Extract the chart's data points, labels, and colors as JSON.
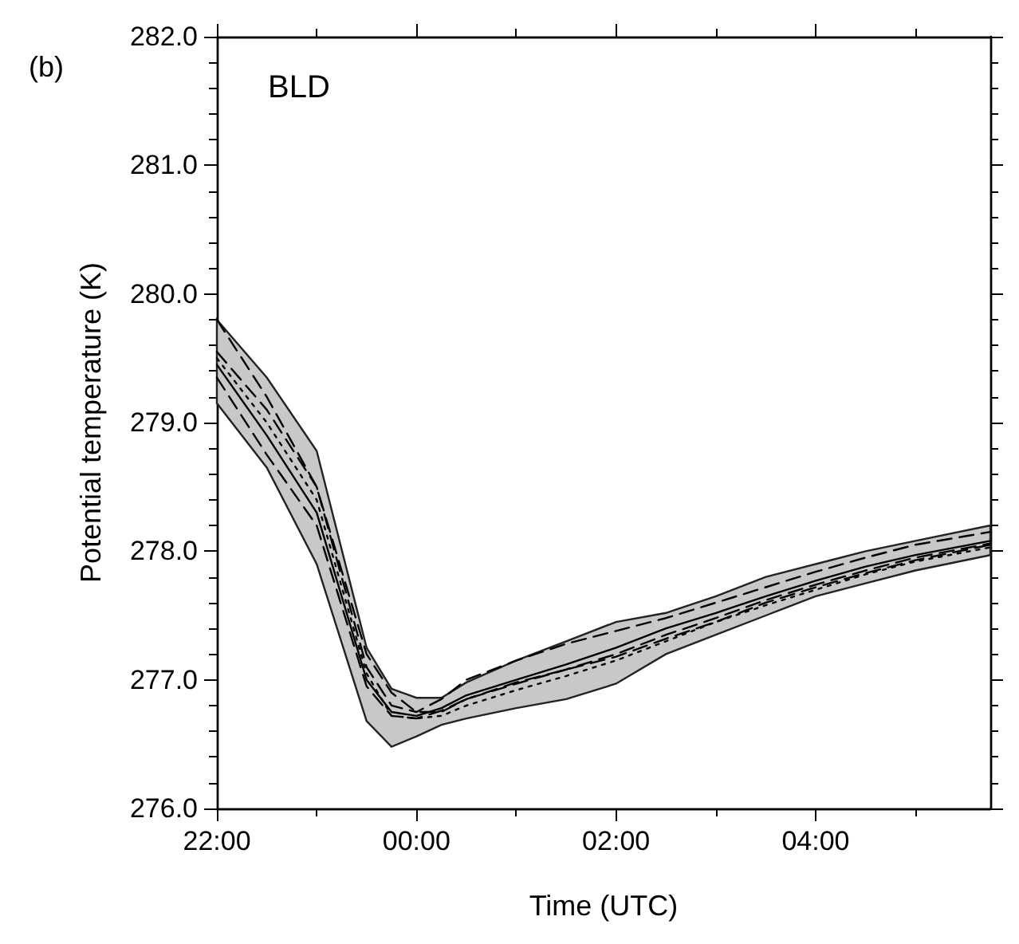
{
  "chart_data": {
    "type": "line",
    "xlabel": "Time (UTC)",
    "ylabel": "Potential temperature (K)",
    "annotations": [
      "(b)",
      "BLD"
    ],
    "x": [
      "2000-01-01T22:00",
      "2000-01-01T22:30",
      "2000-01-01T23:00",
      "2000-01-01T23:30",
      "2000-01-01T23:45",
      "2000-01-02T00:00",
      "2000-01-02T00:15",
      "2000-01-02T00:30",
      "2000-01-02T01:00",
      "2000-01-02T01:30",
      "2000-01-02T02:00",
      "2000-01-02T02:30",
      "2000-01-02T03:00",
      "2000-01-02T03:30",
      "2000-01-02T04:00",
      "2000-01-02T04:30",
      "2000-01-02T05:00",
      "2000-01-02T05:45"
    ],
    "xlim": [
      "2000-01-01T22:00",
      "2000-01-02T05:45"
    ],
    "xticks": [
      {
        "value": "2000-01-01T22:00",
        "label": "22:00"
      },
      {
        "value": "2000-01-01T23:00",
        "label": null
      },
      {
        "value": "2000-01-02T00:00",
        "label": "00:00"
      },
      {
        "value": "2000-01-02T01:00",
        "label": null
      },
      {
        "value": "2000-01-02T02:00",
        "label": "02:00"
      },
      {
        "value": "2000-01-02T03:00",
        "label": null
      },
      {
        "value": "2000-01-02T04:00",
        "label": "04:00"
      },
      {
        "value": "2000-01-02T05:00",
        "label": null
      }
    ],
    "ylim": [
      276,
      282
    ],
    "yticks": [
      {
        "value": 276,
        "label": "276.0"
      },
      {
        "value": 276.2,
        "label": null
      },
      {
        "value": 276.4,
        "label": null
      },
      {
        "value": 276.6,
        "label": null
      },
      {
        "value": 276.8,
        "label": null
      },
      {
        "value": 277,
        "label": "277.0"
      },
      {
        "value": 277.2,
        "label": null
      },
      {
        "value": 277.4,
        "label": null
      },
      {
        "value": 277.6,
        "label": null
      },
      {
        "value": 277.8,
        "label": null
      },
      {
        "value": 278,
        "label": "278.0"
      },
      {
        "value": 278.2,
        "label": null
      },
      {
        "value": 278.4,
        "label": null
      },
      {
        "value": 278.6,
        "label": null
      },
      {
        "value": 278.8,
        "label": null
      },
      {
        "value": 279,
        "label": "279.0"
      },
      {
        "value": 279.2,
        "label": null
      },
      {
        "value": 279.4,
        "label": null
      },
      {
        "value": 279.6,
        "label": null
      },
      {
        "value": 279.8,
        "label": null
      },
      {
        "value": 280,
        "label": "280.0"
      },
      {
        "value": 280.2,
        "label": null
      },
      {
        "value": 280.4,
        "label": null
      },
      {
        "value": 280.6,
        "label": null
      },
      {
        "value": 280.8,
        "label": null
      },
      {
        "value": 281,
        "label": "281.0"
      },
      {
        "value": 281.2,
        "label": null
      },
      {
        "value": 281.4,
        "label": null
      },
      {
        "value": 281.6,
        "label": null
      },
      {
        "value": 281.8,
        "label": null
      },
      {
        "value": 282,
        "label": "282.0"
      }
    ],
    "grid": false,
    "marker": "none",
    "series": [
      {
        "color": "#000000",
        "line_style": "solid",
        "values": [
          279.45,
          278.9,
          278.3,
          277.0,
          276.75,
          276.72,
          276.78,
          276.88,
          277.0,
          277.12,
          277.25,
          277.4,
          277.52,
          277.65,
          277.77,
          277.88,
          277.97,
          278.08
        ],
        "lower": [
          279.15,
          278.65,
          277.9,
          276.68,
          276.48,
          276.56,
          276.65,
          276.7,
          276.78,
          276.85,
          276.97,
          277.2,
          277.35,
          277.5,
          277.65,
          277.75,
          277.85,
          277.97
        ],
        "upper": [
          279.8,
          279.35,
          278.78,
          277.25,
          276.93,
          276.86,
          276.86,
          276.98,
          277.15,
          277.3,
          277.45,
          277.52,
          277.65,
          277.8,
          277.9,
          278.0,
          278.08,
          278.2
        ]
      },
      {
        "color": "#000000",
        "line_style": "dashed",
        "values": [
          279.8,
          279.2,
          278.5,
          277.1,
          276.8,
          276.75,
          276.85,
          277.0,
          277.15,
          277.28,
          277.38,
          277.48,
          277.6,
          277.72,
          277.84,
          277.95,
          278.05,
          278.15
        ]
      },
      {
        "color": "#000000",
        "line_style": "dashed",
        "values": [
          279.55,
          279.1,
          278.5,
          277.2,
          276.9,
          276.75,
          276.75,
          276.85,
          276.98,
          277.08,
          277.18,
          277.32,
          277.45,
          277.6,
          277.72,
          277.83,
          277.93,
          278.05
        ]
      },
      {
        "color": "#000000",
        "line_style": "dotted",
        "values": [
          279.5,
          279.0,
          278.4,
          277.05,
          276.72,
          276.7,
          276.72,
          276.8,
          276.92,
          277.03,
          277.15,
          277.3,
          277.45,
          277.58,
          277.7,
          277.82,
          277.92,
          278.03
        ]
      },
      {
        "color": "#000000",
        "line_style": "dashed",
        "values": [
          279.35,
          278.75,
          278.2,
          276.95,
          276.72,
          276.7,
          276.76,
          276.85,
          276.97,
          277.08,
          277.2,
          277.35,
          277.48,
          277.62,
          277.74,
          277.85,
          277.95,
          278.06
        ]
      }
    ]
  }
}
